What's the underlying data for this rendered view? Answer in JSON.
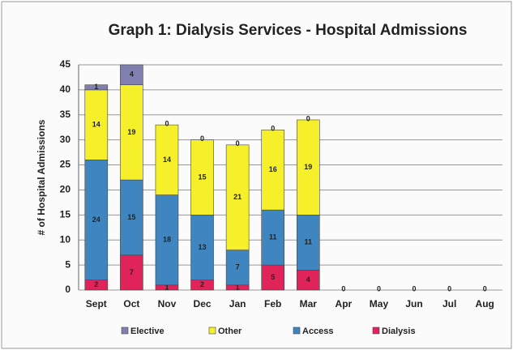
{
  "chart_data": {
    "type": "stacked_bar",
    "title": "Graph 1: Dialysis Services - Hospital Admissions",
    "y_label": "# of Hospital Admissions",
    "categories": [
      "Sept",
      "Oct",
      "Nov",
      "Dec",
      "Jan",
      "Feb",
      "Mar",
      "Apr",
      "May",
      "Jun",
      "Jul",
      "Aug"
    ],
    "series": [
      {
        "name": "Dialysis",
        "color": "#e0245a",
        "values": [
          2,
          7,
          1,
          2,
          1,
          5,
          4,
          0,
          0,
          0,
          0,
          0
        ]
      },
      {
        "name": "Access",
        "color": "#3f86c0",
        "values": [
          24,
          15,
          18,
          13,
          7,
          11,
          11,
          0,
          0,
          0,
          0,
          0
        ]
      },
      {
        "name": "Other",
        "color": "#f5f02a",
        "values": [
          14,
          19,
          14,
          15,
          21,
          16,
          19,
          0,
          0,
          0,
          0,
          0
        ]
      },
      {
        "name": "Elective",
        "color": "#8080b0",
        "values": [
          1,
          4,
          0,
          0,
          0,
          0,
          0,
          0,
          0,
          0,
          0,
          0
        ]
      }
    ],
    "ylim": [
      0,
      45
    ],
    "yticks": [
      0,
      5,
      10,
      15,
      20,
      25,
      30,
      35,
      40,
      45
    ],
    "grid": true,
    "legend": "bottom"
  }
}
